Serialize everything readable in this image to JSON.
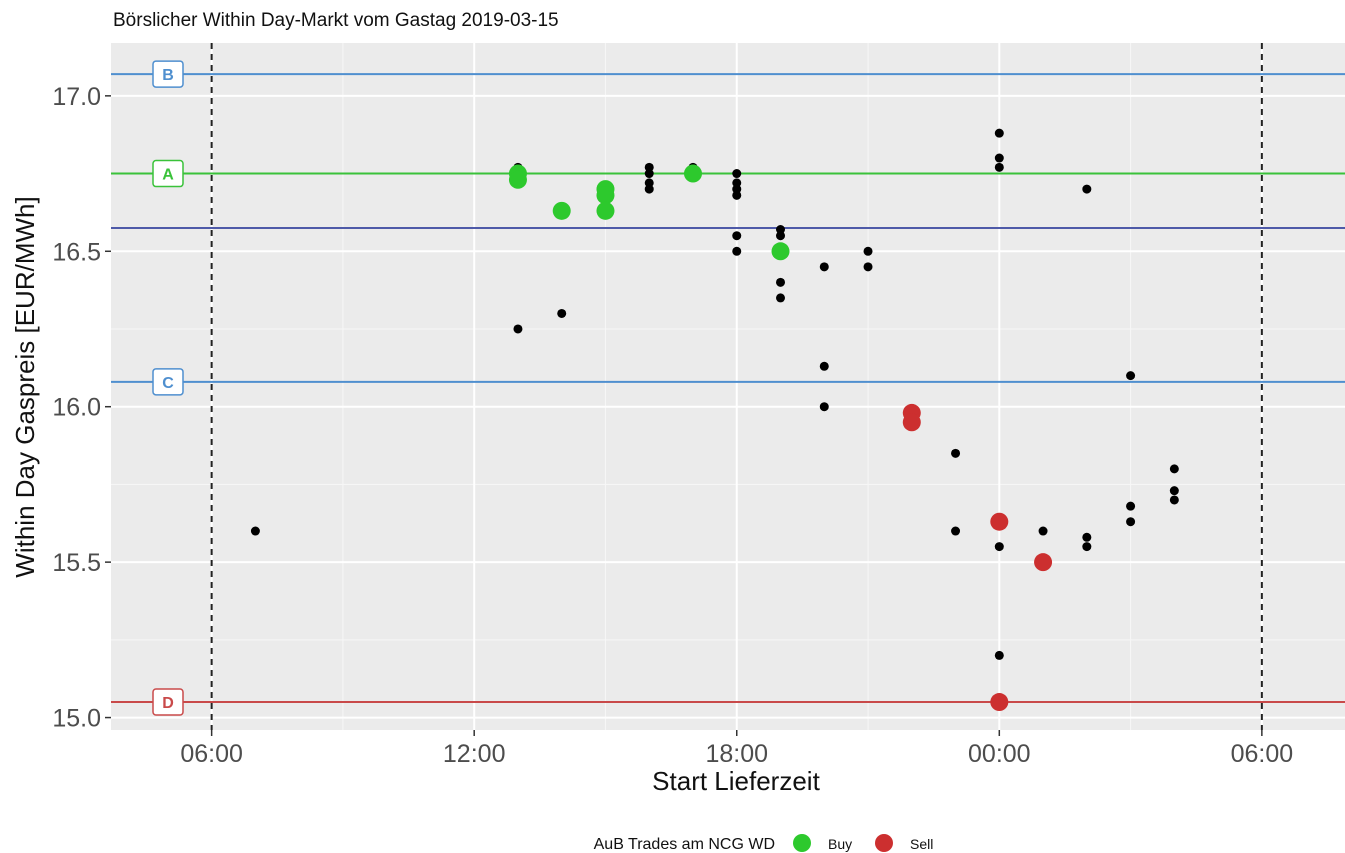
{
  "chart_data": {
    "type": "scatter",
    "title": "Börslicher Within Day-Markt vom Gastag 2019-03-15",
    "xlabel": "Start Lieferzeit",
    "ylabel": "Within Day Gaspreis [EUR/MWh]",
    "x_unit": "hours since 2019-03-14 00:00",
    "xlim": [
      3.7,
      31.9
    ],
    "ylim": [
      14.96,
      17.17
    ],
    "x_ticks": [
      {
        "value": 6,
        "label": "06:00"
      },
      {
        "value": 12,
        "label": "12:00"
      },
      {
        "value": 18,
        "label": "18:00"
      },
      {
        "value": 24,
        "label": "00:00"
      },
      {
        "value": 30,
        "label": "06:00"
      }
    ],
    "y_ticks": [
      {
        "value": 15.0,
        "label": "15.0"
      },
      {
        "value": 15.5,
        "label": "15.5"
      },
      {
        "value": 16.0,
        "label": "16.0"
      },
      {
        "value": 16.5,
        "label": "16.5"
      },
      {
        "value": 17.0,
        "label": "17.0"
      }
    ],
    "grid": true,
    "vertical_dashed_lines": [
      6,
      30
    ],
    "reference_lines": [
      {
        "label": "B",
        "value": 17.07,
        "color": "#4f8fcf"
      },
      {
        "label": "A",
        "value": 16.75,
        "color": "#3ac23a"
      },
      {
        "label": "",
        "value": 16.575,
        "color": "#4e5aa8"
      },
      {
        "label": "C",
        "value": 16.08,
        "color": "#4f8fcf"
      },
      {
        "label": "D",
        "value": 15.05,
        "color": "#c94a4a"
      }
    ],
    "series": [
      {
        "name": "",
        "color": "#000000",
        "points": [
          [
            7,
            15.6
          ],
          [
            13,
            16.77
          ],
          [
            13,
            16.75
          ],
          [
            13,
            16.73
          ],
          [
            13,
            16.25
          ],
          [
            14,
            16.3
          ],
          [
            16,
            16.77
          ],
          [
            16,
            16.75
          ],
          [
            16,
            16.72
          ],
          [
            16,
            16.7
          ],
          [
            17,
            16.77
          ],
          [
            17,
            16.75
          ],
          [
            18,
            16.75
          ],
          [
            18,
            16.72
          ],
          [
            18,
            16.7
          ],
          [
            18,
            16.68
          ],
          [
            18,
            16.55
          ],
          [
            18,
            16.5
          ],
          [
            19,
            16.57
          ],
          [
            19,
            16.55
          ],
          [
            19,
            16.4
          ],
          [
            19,
            16.35
          ],
          [
            20,
            16.45
          ],
          [
            20,
            16.13
          ],
          [
            20,
            16.0
          ],
          [
            21,
            16.5
          ],
          [
            21,
            16.45
          ],
          [
            23,
            15.85
          ],
          [
            23,
            15.6
          ],
          [
            24,
            16.88
          ],
          [
            24,
            16.8
          ],
          [
            24,
            16.77
          ],
          [
            24,
            15.55
          ],
          [
            24,
            15.2
          ],
          [
            25,
            15.6
          ],
          [
            26,
            16.7
          ],
          [
            26,
            15.58
          ],
          [
            26,
            15.55
          ],
          [
            27,
            16.1
          ],
          [
            27,
            15.68
          ],
          [
            27,
            15.63
          ],
          [
            28,
            15.8
          ],
          [
            28,
            15.73
          ],
          [
            28,
            15.7
          ]
        ]
      },
      {
        "name": "Buy",
        "color": "#2dc92d",
        "points": [
          [
            13,
            16.75
          ],
          [
            13,
            16.73
          ],
          [
            14,
            16.63
          ],
          [
            15,
            16.7
          ],
          [
            15,
            16.68
          ],
          [
            15,
            16.63
          ],
          [
            17,
            16.75
          ],
          [
            19,
            16.5
          ]
        ]
      },
      {
        "name": "Sell",
        "color": "#cc2f2f",
        "points": [
          [
            22,
            15.98
          ],
          [
            22,
            15.95
          ],
          [
            24,
            15.63
          ],
          [
            24,
            15.05
          ],
          [
            25,
            15.5
          ]
        ]
      }
    ],
    "legend": {
      "title": "AuB Trades am NCG WD",
      "position": "bottom",
      "entries": [
        {
          "label": "Buy",
          "color": "#2dc92d"
        },
        {
          "label": "Sell",
          "color": "#cc2f2f"
        }
      ]
    }
  }
}
